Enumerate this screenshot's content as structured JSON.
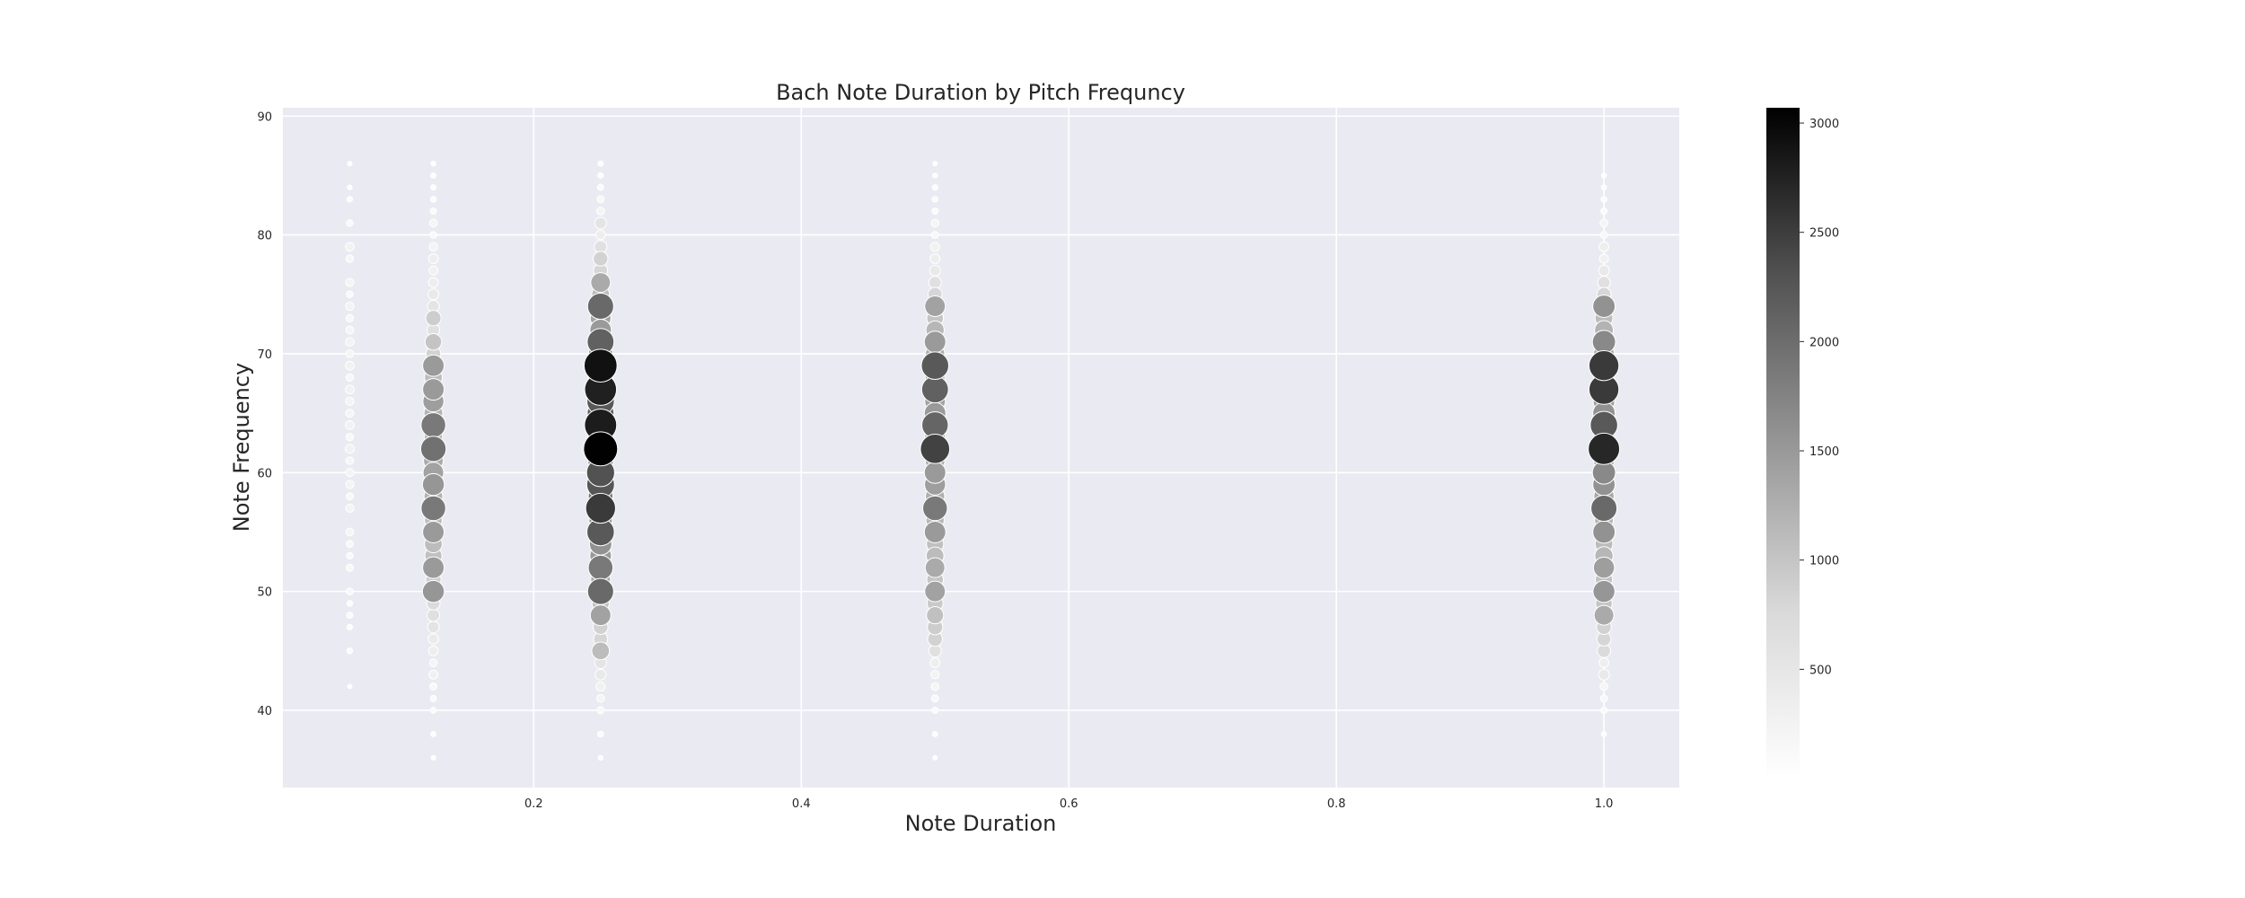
{
  "chart_data": {
    "type": "scatter",
    "title": "Bach Note Duration by Pitch Frequncy",
    "xlabel": "Note Duration",
    "ylabel": "Note Frequency",
    "xlim": [
      0.0125,
      1.0563
    ],
    "ylim": [
      33.5,
      90.7
    ],
    "xticks": [
      0.2,
      0.4,
      0.6,
      0.8,
      1.0
    ],
    "xtick_labels": [
      "0.2",
      "0.4",
      "0.6",
      "0.8",
      "1.0"
    ],
    "yticks": [
      40,
      50,
      60,
      70,
      80,
      90
    ],
    "ytick_labels": [
      "40",
      "50",
      "60",
      "70",
      "80",
      "90"
    ],
    "grid": true,
    "colorbar": {
      "range": [
        0,
        3070
      ],
      "ticks": [
        500,
        1000,
        1500,
        2000,
        2500,
        3000
      ],
      "tick_labels": [
        "500",
        "1000",
        "1500",
        "2000",
        "2500",
        "3000"
      ],
      "colormap": "Greys"
    },
    "points": [
      {
        "x": 0.0625,
        "y": 42,
        "count": 10
      },
      {
        "x": 0.0625,
        "y": 45,
        "count": 30
      },
      {
        "x": 0.0625,
        "y": 47,
        "count": 25
      },
      {
        "x": 0.0625,
        "y": 48,
        "count": 40
      },
      {
        "x": 0.0625,
        "y": 49,
        "count": 30
      },
      {
        "x": 0.0625,
        "y": 50,
        "count": 55
      },
      {
        "x": 0.0625,
        "y": 52,
        "count": 60
      },
      {
        "x": 0.0625,
        "y": 53,
        "count": 45
      },
      {
        "x": 0.0625,
        "y": 54,
        "count": 55
      },
      {
        "x": 0.0625,
        "y": 55,
        "count": 80
      },
      {
        "x": 0.0625,
        "y": 57,
        "count": 90
      },
      {
        "x": 0.0625,
        "y": 58,
        "count": 60
      },
      {
        "x": 0.0625,
        "y": 59,
        "count": 95
      },
      {
        "x": 0.0625,
        "y": 60,
        "count": 90
      },
      {
        "x": 0.0625,
        "y": 61,
        "count": 75
      },
      {
        "x": 0.0625,
        "y": 62,
        "count": 120
      },
      {
        "x": 0.0625,
        "y": 63,
        "count": 70
      },
      {
        "x": 0.0625,
        "y": 64,
        "count": 110
      },
      {
        "x": 0.0625,
        "y": 65,
        "count": 85
      },
      {
        "x": 0.0625,
        "y": 66,
        "count": 95
      },
      {
        "x": 0.0625,
        "y": 67,
        "count": 110
      },
      {
        "x": 0.0625,
        "y": 68,
        "count": 70
      },
      {
        "x": 0.0625,
        "y": 69,
        "count": 115
      },
      {
        "x": 0.0625,
        "y": 70,
        "count": 80
      },
      {
        "x": 0.0625,
        "y": 71,
        "count": 105
      },
      {
        "x": 0.0625,
        "y": 72,
        "count": 80
      },
      {
        "x": 0.0625,
        "y": 73,
        "count": 70
      },
      {
        "x": 0.0625,
        "y": 74,
        "count": 100
      },
      {
        "x": 0.0625,
        "y": 75,
        "count": 50
      },
      {
        "x": 0.0625,
        "y": 76,
        "count": 90
      },
      {
        "x": 0.0625,
        "y": 78,
        "count": 70
      },
      {
        "x": 0.0625,
        "y": 79,
        "count": 110
      },
      {
        "x": 0.0625,
        "y": 81,
        "count": 50
      },
      {
        "x": 0.0625,
        "y": 83,
        "count": 25
      },
      {
        "x": 0.0625,
        "y": 84,
        "count": 15
      },
      {
        "x": 0.0625,
        "y": 86,
        "count": 10
      },
      {
        "x": 0.125,
        "y": 36,
        "count": 10
      },
      {
        "x": 0.125,
        "y": 38,
        "count": 20
      },
      {
        "x": 0.125,
        "y": 40,
        "count": 30
      },
      {
        "x": 0.125,
        "y": 41,
        "count": 40
      },
      {
        "x": 0.125,
        "y": 42,
        "count": 60
      },
      {
        "x": 0.125,
        "y": 43,
        "count": 120
      },
      {
        "x": 0.125,
        "y": 44,
        "count": 80
      },
      {
        "x": 0.125,
        "y": 45,
        "count": 150
      },
      {
        "x": 0.125,
        "y": 46,
        "count": 180
      },
      {
        "x": 0.125,
        "y": 47,
        "count": 250
      },
      {
        "x": 0.125,
        "y": 48,
        "count": 300
      },
      {
        "x": 0.125,
        "y": 49,
        "count": 350
      },
      {
        "x": 0.125,
        "y": 50,
        "count": 1150
      },
      {
        "x": 0.125,
        "y": 51,
        "count": 500
      },
      {
        "x": 0.125,
        "y": 52,
        "count": 1100
      },
      {
        "x": 0.125,
        "y": 53,
        "count": 650
      },
      {
        "x": 0.125,
        "y": 54,
        "count": 700
      },
      {
        "x": 0.125,
        "y": 55,
        "count": 1100
      },
      {
        "x": 0.125,
        "y": 56,
        "count": 700
      },
      {
        "x": 0.125,
        "y": 57,
        "count": 1500
      },
      {
        "x": 0.125,
        "y": 58,
        "count": 800
      },
      {
        "x": 0.125,
        "y": 59,
        "count": 1150
      },
      {
        "x": 0.125,
        "y": 60,
        "count": 1000
      },
      {
        "x": 0.125,
        "y": 61,
        "count": 900
      },
      {
        "x": 0.125,
        "y": 62,
        "count": 1600
      },
      {
        "x": 0.125,
        "y": 63,
        "count": 750
      },
      {
        "x": 0.125,
        "y": 64,
        "count": 1500
      },
      {
        "x": 0.125,
        "y": 65,
        "count": 800
      },
      {
        "x": 0.125,
        "y": 66,
        "count": 1050
      },
      {
        "x": 0.125,
        "y": 67,
        "count": 1100
      },
      {
        "x": 0.125,
        "y": 68,
        "count": 700
      },
      {
        "x": 0.125,
        "y": 69,
        "count": 1100
      },
      {
        "x": 0.125,
        "y": 70,
        "count": 450
      },
      {
        "x": 0.125,
        "y": 71,
        "count": 600
      },
      {
        "x": 0.125,
        "y": 72,
        "count": 300
      },
      {
        "x": 0.125,
        "y": 73,
        "count": 500
      },
      {
        "x": 0.125,
        "y": 74,
        "count": 250
      },
      {
        "x": 0.125,
        "y": 75,
        "count": 200
      },
      {
        "x": 0.125,
        "y": 76,
        "count": 150
      },
      {
        "x": 0.125,
        "y": 77,
        "count": 120
      },
      {
        "x": 0.125,
        "y": 78,
        "count": 150
      },
      {
        "x": 0.125,
        "y": 79,
        "count": 100
      },
      {
        "x": 0.125,
        "y": 80,
        "count": 50
      },
      {
        "x": 0.125,
        "y": 81,
        "count": 80
      },
      {
        "x": 0.125,
        "y": 82,
        "count": 40
      },
      {
        "x": 0.125,
        "y": 83,
        "count": 30
      },
      {
        "x": 0.125,
        "y": 84,
        "count": 25
      },
      {
        "x": 0.125,
        "y": 85,
        "count": 20
      },
      {
        "x": 0.125,
        "y": 86,
        "count": 15
      },
      {
        "x": 0.25,
        "y": 36,
        "count": 15
      },
      {
        "x": 0.25,
        "y": 38,
        "count": 30
      },
      {
        "x": 0.25,
        "y": 40,
        "count": 60
      },
      {
        "x": 0.25,
        "y": 41,
        "count": 80
      },
      {
        "x": 0.25,
        "y": 42,
        "count": 120
      },
      {
        "x": 0.25,
        "y": 43,
        "count": 200
      },
      {
        "x": 0.25,
        "y": 44,
        "count": 250
      },
      {
        "x": 0.25,
        "y": 45,
        "count": 700
      },
      {
        "x": 0.25,
        "y": 46,
        "count": 400
      },
      {
        "x": 0.25,
        "y": 47,
        "count": 450
      },
      {
        "x": 0.25,
        "y": 48,
        "count": 1000
      },
      {
        "x": 0.25,
        "y": 49,
        "count": 650
      },
      {
        "x": 0.25,
        "y": 50,
        "count": 1700
      },
      {
        "x": 0.25,
        "y": 51,
        "count": 900
      },
      {
        "x": 0.25,
        "y": 52,
        "count": 1500
      },
      {
        "x": 0.25,
        "y": 53,
        "count": 1100
      },
      {
        "x": 0.25,
        "y": 54,
        "count": 1200
      },
      {
        "x": 0.25,
        "y": 55,
        "count": 1900
      },
      {
        "x": 0.25,
        "y": 56,
        "count": 1300
      },
      {
        "x": 0.25,
        "y": 57,
        "count": 2300
      },
      {
        "x": 0.25,
        "y": 58,
        "count": 1500
      },
      {
        "x": 0.25,
        "y": 59,
        "count": 1950
      },
      {
        "x": 0.25,
        "y": 60,
        "count": 2000
      },
      {
        "x": 0.25,
        "y": 61,
        "count": 1600
      },
      {
        "x": 0.25,
        "y": 62,
        "count": 3050
      },
      {
        "x": 0.25,
        "y": 63,
        "count": 1700
      },
      {
        "x": 0.25,
        "y": 64,
        "count": 2700
      },
      {
        "x": 0.25,
        "y": 65,
        "count": 1800
      },
      {
        "x": 0.25,
        "y": 66,
        "count": 1900
      },
      {
        "x": 0.25,
        "y": 67,
        "count": 2650
      },
      {
        "x": 0.25,
        "y": 68,
        "count": 1500
      },
      {
        "x": 0.25,
        "y": 69,
        "count": 2850
      },
      {
        "x": 0.25,
        "y": 70,
        "count": 1400
      },
      {
        "x": 0.25,
        "y": 71,
        "count": 1800
      },
      {
        "x": 0.25,
        "y": 72,
        "count": 1100
      },
      {
        "x": 0.25,
        "y": 73,
        "count": 1000
      },
      {
        "x": 0.25,
        "y": 74,
        "count": 1700
      },
      {
        "x": 0.25,
        "y": 75,
        "count": 700
      },
      {
        "x": 0.25,
        "y": 76,
        "count": 900
      },
      {
        "x": 0.25,
        "y": 77,
        "count": 400
      },
      {
        "x": 0.25,
        "y": 78,
        "count": 450
      },
      {
        "x": 0.25,
        "y": 79,
        "count": 300
      },
      {
        "x": 0.25,
        "y": 80,
        "count": 150
      },
      {
        "x": 0.25,
        "y": 81,
        "count": 250
      },
      {
        "x": 0.25,
        "y": 82,
        "count": 80
      },
      {
        "x": 0.25,
        "y": 83,
        "count": 60
      },
      {
        "x": 0.25,
        "y": 84,
        "count": 40
      },
      {
        "x": 0.25,
        "y": 85,
        "count": 25
      },
      {
        "x": 0.25,
        "y": 86,
        "count": 20
      },
      {
        "x": 0.5,
        "y": 36,
        "count": 10
      },
      {
        "x": 0.5,
        "y": 38,
        "count": 20
      },
      {
        "x": 0.5,
        "y": 40,
        "count": 40
      },
      {
        "x": 0.5,
        "y": 41,
        "count": 60
      },
      {
        "x": 0.5,
        "y": 42,
        "count": 80
      },
      {
        "x": 0.5,
        "y": 43,
        "count": 100
      },
      {
        "x": 0.5,
        "y": 44,
        "count": 150
      },
      {
        "x": 0.5,
        "y": 45,
        "count": 300
      },
      {
        "x": 0.5,
        "y": 46,
        "count": 450
      },
      {
        "x": 0.5,
        "y": 47,
        "count": 500
      },
      {
        "x": 0.5,
        "y": 48,
        "count": 650
      },
      {
        "x": 0.5,
        "y": 49,
        "count": 550
      },
      {
        "x": 0.5,
        "y": 50,
        "count": 1000
      },
      {
        "x": 0.5,
        "y": 51,
        "count": 600
      },
      {
        "x": 0.5,
        "y": 52,
        "count": 900
      },
      {
        "x": 0.5,
        "y": 53,
        "count": 700
      },
      {
        "x": 0.5,
        "y": 54,
        "count": 650
      },
      {
        "x": 0.5,
        "y": 55,
        "count": 1100
      },
      {
        "x": 0.5,
        "y": 56,
        "count": 750
      },
      {
        "x": 0.5,
        "y": 57,
        "count": 1500
      },
      {
        "x": 0.5,
        "y": 58,
        "count": 850
      },
      {
        "x": 0.5,
        "y": 59,
        "count": 1050
      },
      {
        "x": 0.5,
        "y": 60,
        "count": 1100
      },
      {
        "x": 0.5,
        "y": 61,
        "count": 900
      },
      {
        "x": 0.5,
        "y": 62,
        "count": 2200
      },
      {
        "x": 0.5,
        "y": 63,
        "count": 1000
      },
      {
        "x": 0.5,
        "y": 64,
        "count": 1750
      },
      {
        "x": 0.5,
        "y": 65,
        "count": 1100
      },
      {
        "x": 0.5,
        "y": 66,
        "count": 1000
      },
      {
        "x": 0.5,
        "y": 67,
        "count": 1800
      },
      {
        "x": 0.5,
        "y": 68,
        "count": 900
      },
      {
        "x": 0.5,
        "y": 69,
        "count": 1900
      },
      {
        "x": 0.5,
        "y": 70,
        "count": 850
      },
      {
        "x": 0.5,
        "y": 71,
        "count": 1100
      },
      {
        "x": 0.5,
        "y": 72,
        "count": 750
      },
      {
        "x": 0.5,
        "y": 73,
        "count": 600
      },
      {
        "x": 0.5,
        "y": 74,
        "count": 1000
      },
      {
        "x": 0.5,
        "y": 75,
        "count": 400
      },
      {
        "x": 0.5,
        "y": 76,
        "count": 300
      },
      {
        "x": 0.5,
        "y": 77,
        "count": 200
      },
      {
        "x": 0.5,
        "y": 78,
        "count": 150
      },
      {
        "x": 0.5,
        "y": 79,
        "count": 120
      },
      {
        "x": 0.5,
        "y": 80,
        "count": 60
      },
      {
        "x": 0.5,
        "y": 81,
        "count": 80
      },
      {
        "x": 0.5,
        "y": 82,
        "count": 40
      },
      {
        "x": 0.5,
        "y": 83,
        "count": 30
      },
      {
        "x": 0.5,
        "y": 84,
        "count": 25
      },
      {
        "x": 0.5,
        "y": 85,
        "count": 15
      },
      {
        "x": 0.5,
        "y": 86,
        "count": 10
      },
      {
        "x": 1.0,
        "y": 38,
        "count": 20
      },
      {
        "x": 1.0,
        "y": 40,
        "count": 40
      },
      {
        "x": 1.0,
        "y": 41,
        "count": 60
      },
      {
        "x": 1.0,
        "y": 42,
        "count": 80
      },
      {
        "x": 1.0,
        "y": 43,
        "count": 200
      },
      {
        "x": 1.0,
        "y": 44,
        "count": 150
      },
      {
        "x": 1.0,
        "y": 45,
        "count": 350
      },
      {
        "x": 1.0,
        "y": 46,
        "count": 400
      },
      {
        "x": 1.0,
        "y": 47,
        "count": 450
      },
      {
        "x": 1.0,
        "y": 48,
        "count": 900
      },
      {
        "x": 1.0,
        "y": 49,
        "count": 600
      },
      {
        "x": 1.0,
        "y": 50,
        "count": 1150
      },
      {
        "x": 1.0,
        "y": 51,
        "count": 650
      },
      {
        "x": 1.0,
        "y": 52,
        "count": 1050
      },
      {
        "x": 1.0,
        "y": 53,
        "count": 750
      },
      {
        "x": 1.0,
        "y": 54,
        "count": 700
      },
      {
        "x": 1.0,
        "y": 55,
        "count": 1200
      },
      {
        "x": 1.0,
        "y": 56,
        "count": 800
      },
      {
        "x": 1.0,
        "y": 57,
        "count": 1700
      },
      {
        "x": 1.0,
        "y": 58,
        "count": 950
      },
      {
        "x": 1.0,
        "y": 59,
        "count": 1200
      },
      {
        "x": 1.0,
        "y": 60,
        "count": 1300
      },
      {
        "x": 1.0,
        "y": 61,
        "count": 1000
      },
      {
        "x": 1.0,
        "y": 62,
        "count": 2550
      },
      {
        "x": 1.0,
        "y": 63,
        "count": 1100
      },
      {
        "x": 1.0,
        "y": 64,
        "count": 1900
      },
      {
        "x": 1.0,
        "y": 65,
        "count": 1200
      },
      {
        "x": 1.0,
        "y": 66,
        "count": 1100
      },
      {
        "x": 1.0,
        "y": 67,
        "count": 2300
      },
      {
        "x": 1.0,
        "y": 68,
        "count": 1000
      },
      {
        "x": 1.0,
        "y": 69,
        "count": 2300
      },
      {
        "x": 1.0,
        "y": 70,
        "count": 1000
      },
      {
        "x": 1.0,
        "y": 71,
        "count": 1300
      },
      {
        "x": 1.0,
        "y": 72,
        "count": 800
      },
      {
        "x": 1.0,
        "y": 73,
        "count": 700
      },
      {
        "x": 1.0,
        "y": 74,
        "count": 1200
      },
      {
        "x": 1.0,
        "y": 75,
        "count": 400
      },
      {
        "x": 1.0,
        "y": 76,
        "count": 300
      },
      {
        "x": 1.0,
        "y": 77,
        "count": 200
      },
      {
        "x": 1.0,
        "y": 78,
        "count": 120
      },
      {
        "x": 1.0,
        "y": 79,
        "count": 150
      },
      {
        "x": 1.0,
        "y": 80,
        "count": 60
      },
      {
        "x": 1.0,
        "y": 81,
        "count": 80
      },
      {
        "x": 1.0,
        "y": 82,
        "count": 40
      },
      {
        "x": 1.0,
        "y": 83,
        "count": 30
      },
      {
        "x": 1.0,
        "y": 84,
        "count": 20
      },
      {
        "x": 1.0,
        "y": 85,
        "count": 15
      }
    ]
  }
}
